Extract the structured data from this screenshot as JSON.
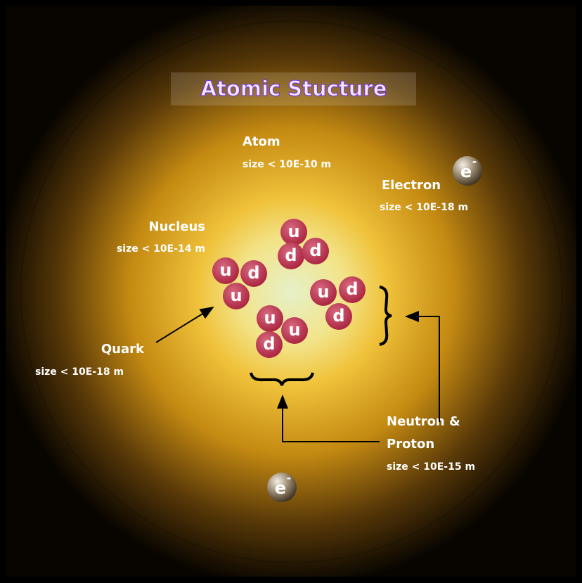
{
  "title": "Atomic Stucture",
  "labels": {
    "atom": {
      "name": "Atom",
      "size": "size < 10E-10 m"
    },
    "electron": {
      "name": "Electron",
      "size": "size < 10E-18 m"
    },
    "nucleus": {
      "name": "Nucleus",
      "size": "size < 10E-14 m"
    },
    "quark": {
      "name": "Quark",
      "size": "size < 10E-18 m"
    },
    "neutron_proton": {
      "name_lines": [
        "Neutron &",
        "Proton"
      ],
      "size": "size < 10E-15 m"
    }
  },
  "particles": [
    [
      "u",
      "d",
      "d"
    ],
    [
      "u",
      "d",
      "u"
    ],
    [
      "u",
      "d",
      "d"
    ],
    [
      "u",
      "u",
      "d"
    ]
  ],
  "electron_symbol": {
    "letter": "e",
    "charge": "-"
  }
}
